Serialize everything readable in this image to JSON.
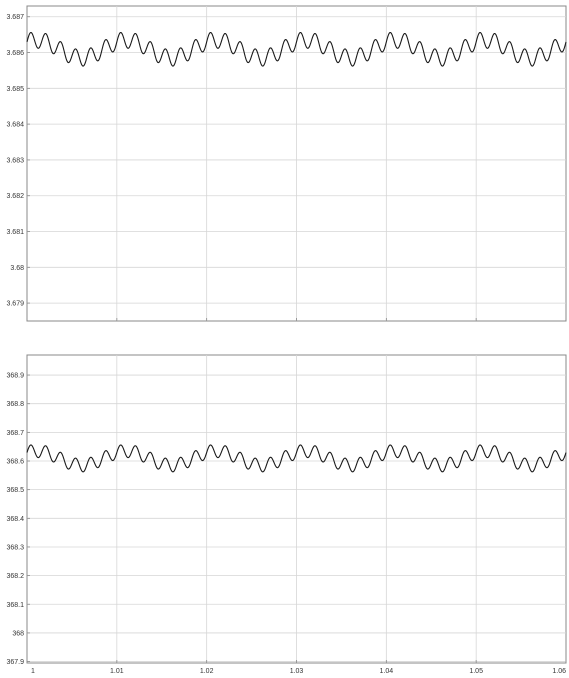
{
  "chart_data": [
    {
      "type": "line",
      "title": "",
      "xlabel": "",
      "ylabel": "",
      "xlim": [
        1,
        1.06
      ],
      "ylim": [
        3.6785,
        3.6873
      ],
      "grid": true,
      "xticks": [
        1,
        1.01,
        1.02,
        1.03,
        1.04,
        1.05,
        1.06
      ],
      "xtick_labels": [],
      "yticks": [
        3.679,
        3.68,
        3.681,
        3.682,
        3.683,
        3.684,
        3.685,
        3.686,
        3.687
      ],
      "ytick_labels": [
        "3.679",
        "3.68",
        "3.681",
        "3.682",
        "3.683",
        "3.684",
        "3.685",
        "3.686",
        "3.687"
      ],
      "waveform": {
        "description_values": "sinusoid with superimposed ripple",
        "mean": 3.6861,
        "low_amplitude": 0.00025,
        "low_period": 0.01,
        "low_phase_start_x": 1.0,
        "ripple_amplitude": 0.00023,
        "ripple_cycles_per_low_period": 6,
        "min_observed": 3.6856,
        "max_observed": 3.6866
      }
    },
    {
      "type": "line",
      "title": "",
      "xlabel": "",
      "ylabel": "",
      "xlim": [
        1,
        1.06
      ],
      "ylim": [
        367.895,
        368.97
      ],
      "grid": true,
      "xticks": [
        1,
        1.01,
        1.02,
        1.03,
        1.04,
        1.05,
        1.06
      ],
      "xtick_labels": [
        "1",
        "1.01",
        "1.02",
        "1.03",
        "1.04",
        "1.05",
        "1.06"
      ],
      "yticks": [
        367.9,
        368,
        368.1,
        368.2,
        368.3,
        368.4,
        368.5,
        368.6,
        368.7,
        368.8,
        368.9
      ],
      "ytick_labels": [
        "367.9",
        "368",
        "368.1",
        "368.2",
        "368.3",
        "368.4",
        "368.5",
        "368.6",
        "368.7",
        "368.8",
        "368.9"
      ],
      "waveform": {
        "mean": 368.61,
        "low_amplitude": 0.025,
        "low_period": 0.01,
        "low_phase_start_x": 1.0,
        "ripple_amplitude": 0.023,
        "ripple_cycles_per_low_period": 6,
        "min_observed": 368.56,
        "max_observed": 368.66
      }
    }
  ],
  "colors": {
    "trace": "#1a1a1a",
    "grid": "#d6d6d6",
    "frame": "#888888",
    "background": "#ffffff"
  }
}
